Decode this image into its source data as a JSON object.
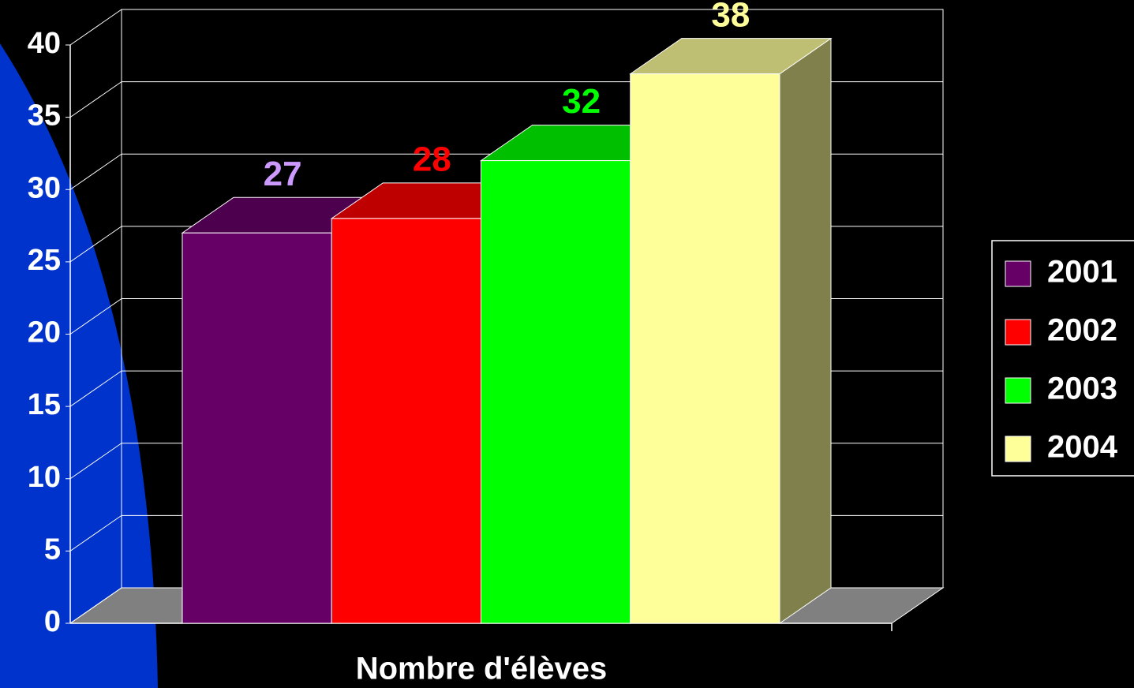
{
  "chart_data": {
    "type": "bar3d",
    "categories": [
      "Nombre d'élèves"
    ],
    "series": [
      {
        "name": "2001",
        "color": "#660066",
        "values": [
          27
        ]
      },
      {
        "name": "2002",
        "color": "#ff0000",
        "values": [
          28
        ]
      },
      {
        "name": "2003",
        "color": "#00ff00",
        "values": [
          32
        ]
      },
      {
        "name": "2004",
        "color": "#ffff99",
        "values": [
          38
        ]
      }
    ],
    "label_colors": [
      "#cc99ff",
      "#ff0000",
      "#00ff00",
      "#ffff99"
    ],
    "ylim": [
      0,
      40
    ],
    "yticks": [
      0,
      5,
      10,
      15,
      20,
      25,
      30,
      35,
      40
    ],
    "grid": true,
    "legend": "right"
  }
}
